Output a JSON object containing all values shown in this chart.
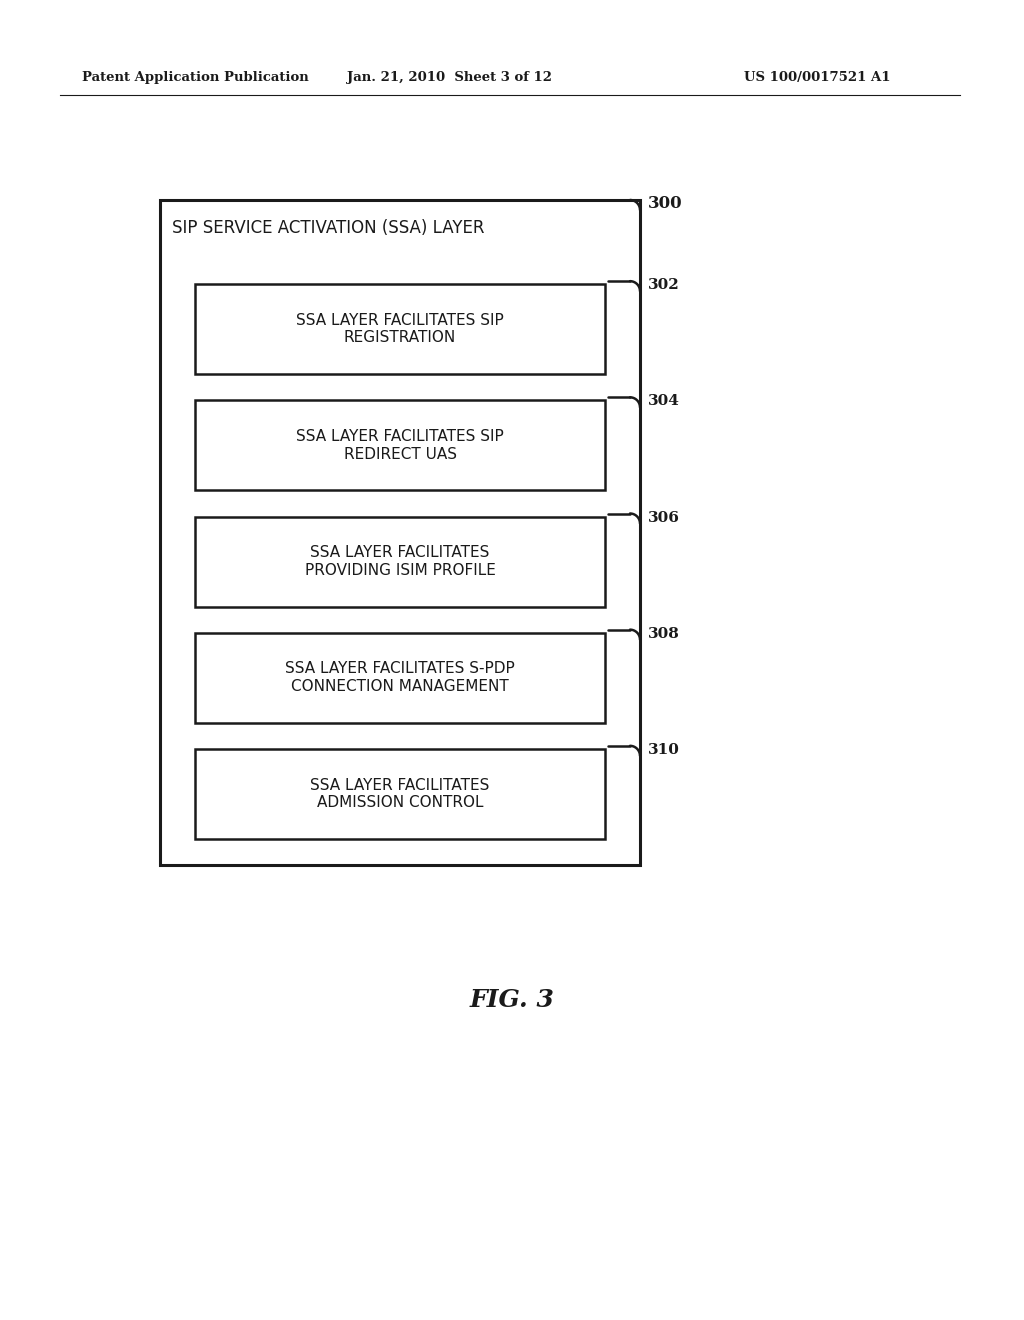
{
  "bg_color": "#ffffff",
  "header_left": "Patent Application Publication",
  "header_mid": "Jan. 21, 2010  Sheet 3 of 12",
  "header_right": "US 100/0017521 A1",
  "fig_label": "FIG. 3",
  "outer_box_label": "SIP SERVICE ACTIVATION (SSA) LAYER",
  "outer_ref": "300",
  "boxes": [
    {
      "label": "SSA LAYER FACILITATES SIP\nREGISTRATION",
      "ref": "302"
    },
    {
      "label": "SSA LAYER FACILITATES SIP\nREDIRECT UAS",
      "ref": "304"
    },
    {
      "label": "SSA LAYER FACILITATES\nPROVIDING ISIM PROFILE",
      "ref": "306"
    },
    {
      "label": "SSA LAYER FACILITATES S-PDP\nCONNECTION MANAGEMENT",
      "ref": "308"
    },
    {
      "label": "SSA LAYER FACILITATES\nADMISSION CONTROL",
      "ref": "310"
    }
  ],
  "fig_w": 10.24,
  "fig_h": 13.2,
  "dpi": 100
}
